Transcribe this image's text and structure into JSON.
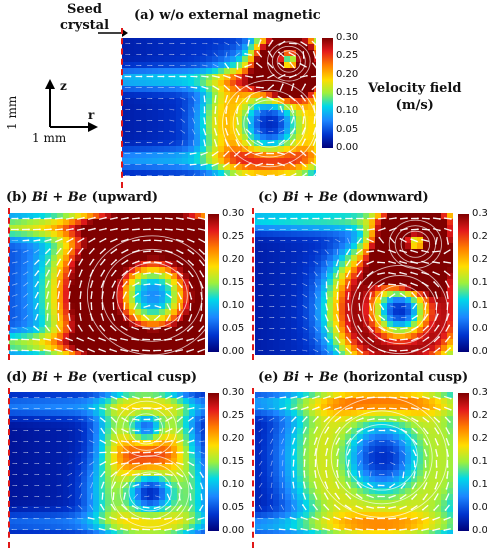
{
  "seed_label": [
    "Seed",
    "crystal"
  ],
  "axes_legend": {
    "z": "z",
    "r": "r",
    "vertical_scale": "1 mm",
    "horizontal_scale": "1 mm"
  },
  "velocity_label": [
    "Velocity field",
    "(m/s)"
  ],
  "colorbar_ticks": [
    "0.30",
    "0.25",
    "0.20",
    "0.15",
    "0.10",
    "0.05",
    "0.00"
  ],
  "colormap_colors": [
    "#7f0000",
    "#e31a1c",
    "#ff7f00",
    "#ffdd00",
    "#9ef03c",
    "#00d8e8",
    "#1c86ff",
    "#0033cc",
    "#00007a"
  ],
  "panels": [
    {
      "id": "a",
      "title": "(a) w/o external magnetic",
      "math": "",
      "suffix": ""
    },
    {
      "id": "b",
      "title": "(b) ",
      "math": "Bi + Be",
      "suffix": " (upward)"
    },
    {
      "id": "c",
      "title": "(c) ",
      "math": "Bi + Be",
      "suffix": " (downward)"
    },
    {
      "id": "d",
      "title": "(d) ",
      "math": "Bi + Be",
      "suffix": " (vertical cusp)"
    },
    {
      "id": "e",
      "title": "(e) ",
      "math": "Bi + Be",
      "suffix": " (horizontal cusp)"
    }
  ]
}
